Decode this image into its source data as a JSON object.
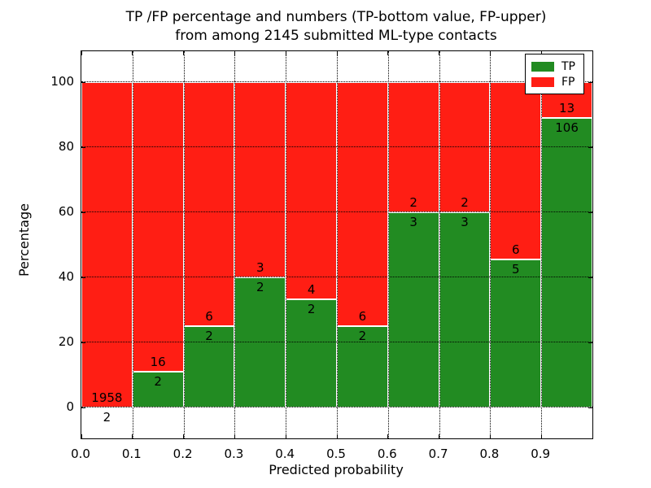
{
  "chart_data": {
    "type": "bar",
    "variant": "stacked-100-percent",
    "title_lines": [
      "TP /FP percentage and numbers (TP-bottom value, FP-upper)",
      "from among 2145 submitted ML-type contacts"
    ],
    "xlabel": "Predicted probability",
    "ylabel": "Percentage",
    "total_contacts": 2145,
    "bin_width": 0.1,
    "x_tick_labels": [
      "0.0",
      "0.1",
      "0.2",
      "0.3",
      "0.4",
      "0.5",
      "0.6",
      "0.7",
      "0.8",
      "0.9"
    ],
    "y_tick_labels": [
      "0",
      "20",
      "40",
      "60",
      "80",
      "100"
    ],
    "y_tick_values": [
      0,
      20,
      40,
      60,
      80,
      100
    ],
    "xlim": [
      0.0,
      1.0
    ],
    "ylim": [
      -9.5,
      109.5
    ],
    "grid": {
      "enabled": true,
      "style": "dotted"
    },
    "colors": {
      "tp": "#228b22",
      "fp": "#ff1e14"
    },
    "legend": {
      "position": "upper-right",
      "entries": [
        {
          "label": "TP",
          "color": "#228b22"
        },
        {
          "label": "FP",
          "color": "#ff1e14"
        }
      ]
    },
    "bins": [
      {
        "x_start": 0.0,
        "x_end": 0.1,
        "tp": 2,
        "fp": 1958,
        "tp_pct": 0.1
      },
      {
        "x_start": 0.1,
        "x_end": 0.2,
        "tp": 2,
        "fp": 16,
        "tp_pct": 11.1
      },
      {
        "x_start": 0.2,
        "x_end": 0.3,
        "tp": 2,
        "fp": 6,
        "tp_pct": 25.0
      },
      {
        "x_start": 0.3,
        "x_end": 0.4,
        "tp": 2,
        "fp": 3,
        "tp_pct": 40.0
      },
      {
        "x_start": 0.4,
        "x_end": 0.5,
        "tp": 2,
        "fp": 4,
        "tp_pct": 33.3
      },
      {
        "x_start": 0.5,
        "x_end": 0.6,
        "tp": 2,
        "fp": 6,
        "tp_pct": 25.0
      },
      {
        "x_start": 0.6,
        "x_end": 0.7,
        "tp": 3,
        "fp": 2,
        "tp_pct": 60.0
      },
      {
        "x_start": 0.7,
        "x_end": 0.8,
        "tp": 3,
        "fp": 2,
        "tp_pct": 60.0
      },
      {
        "x_start": 0.8,
        "x_end": 0.9,
        "tp": 5,
        "fp": 6,
        "tp_pct": 45.5
      },
      {
        "x_start": 0.9,
        "x_end": 1.0,
        "tp": 106,
        "fp": 13,
        "tp_pct": 89.1
      }
    ]
  }
}
